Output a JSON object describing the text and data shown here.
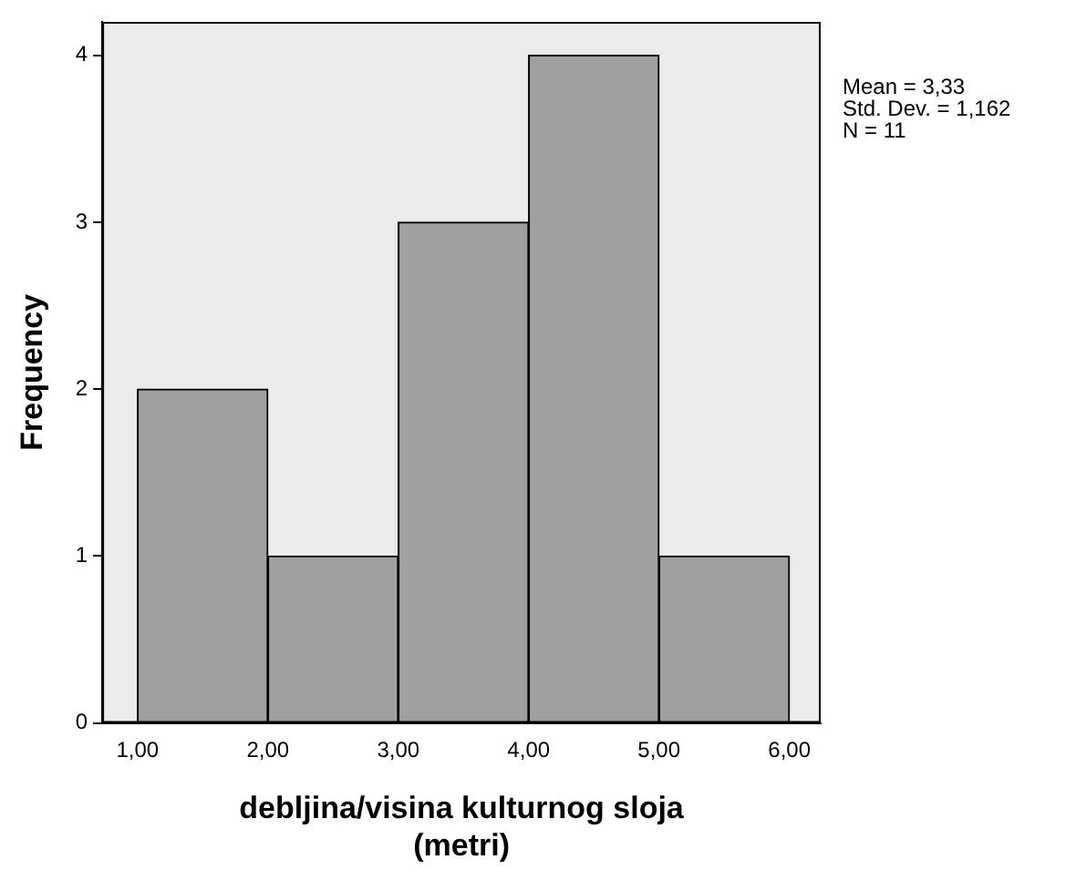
{
  "chart_data": {
    "type": "histogram",
    "xlabel": "debljina/visina kulturnog sloja (metri)",
    "ylabel": "Frequency",
    "bins": [
      1,
      2,
      3,
      4,
      5,
      6
    ],
    "values": [
      2,
      1,
      3,
      4,
      1
    ],
    "color": "#a0a0a0",
    "xlim": [
      0.73,
      6.24
    ],
    "xticks": [
      {
        "value": 1,
        "label": "1,00"
      },
      {
        "value": 2,
        "label": "2,00"
      },
      {
        "value": 3,
        "label": "3,00"
      },
      {
        "value": 4,
        "label": "4,00"
      },
      {
        "value": 5,
        "label": "5,00"
      },
      {
        "value": 6,
        "label": "6,00"
      }
    ],
    "ylim": [
      0,
      4.2
    ],
    "yticks": [
      0,
      1,
      2,
      3,
      4
    ],
    "annotations": [
      "Mean = 3,33",
      "Std. Dev. = 1,162",
      "N = 11"
    ],
    "grid": false,
    "legend": false
  }
}
